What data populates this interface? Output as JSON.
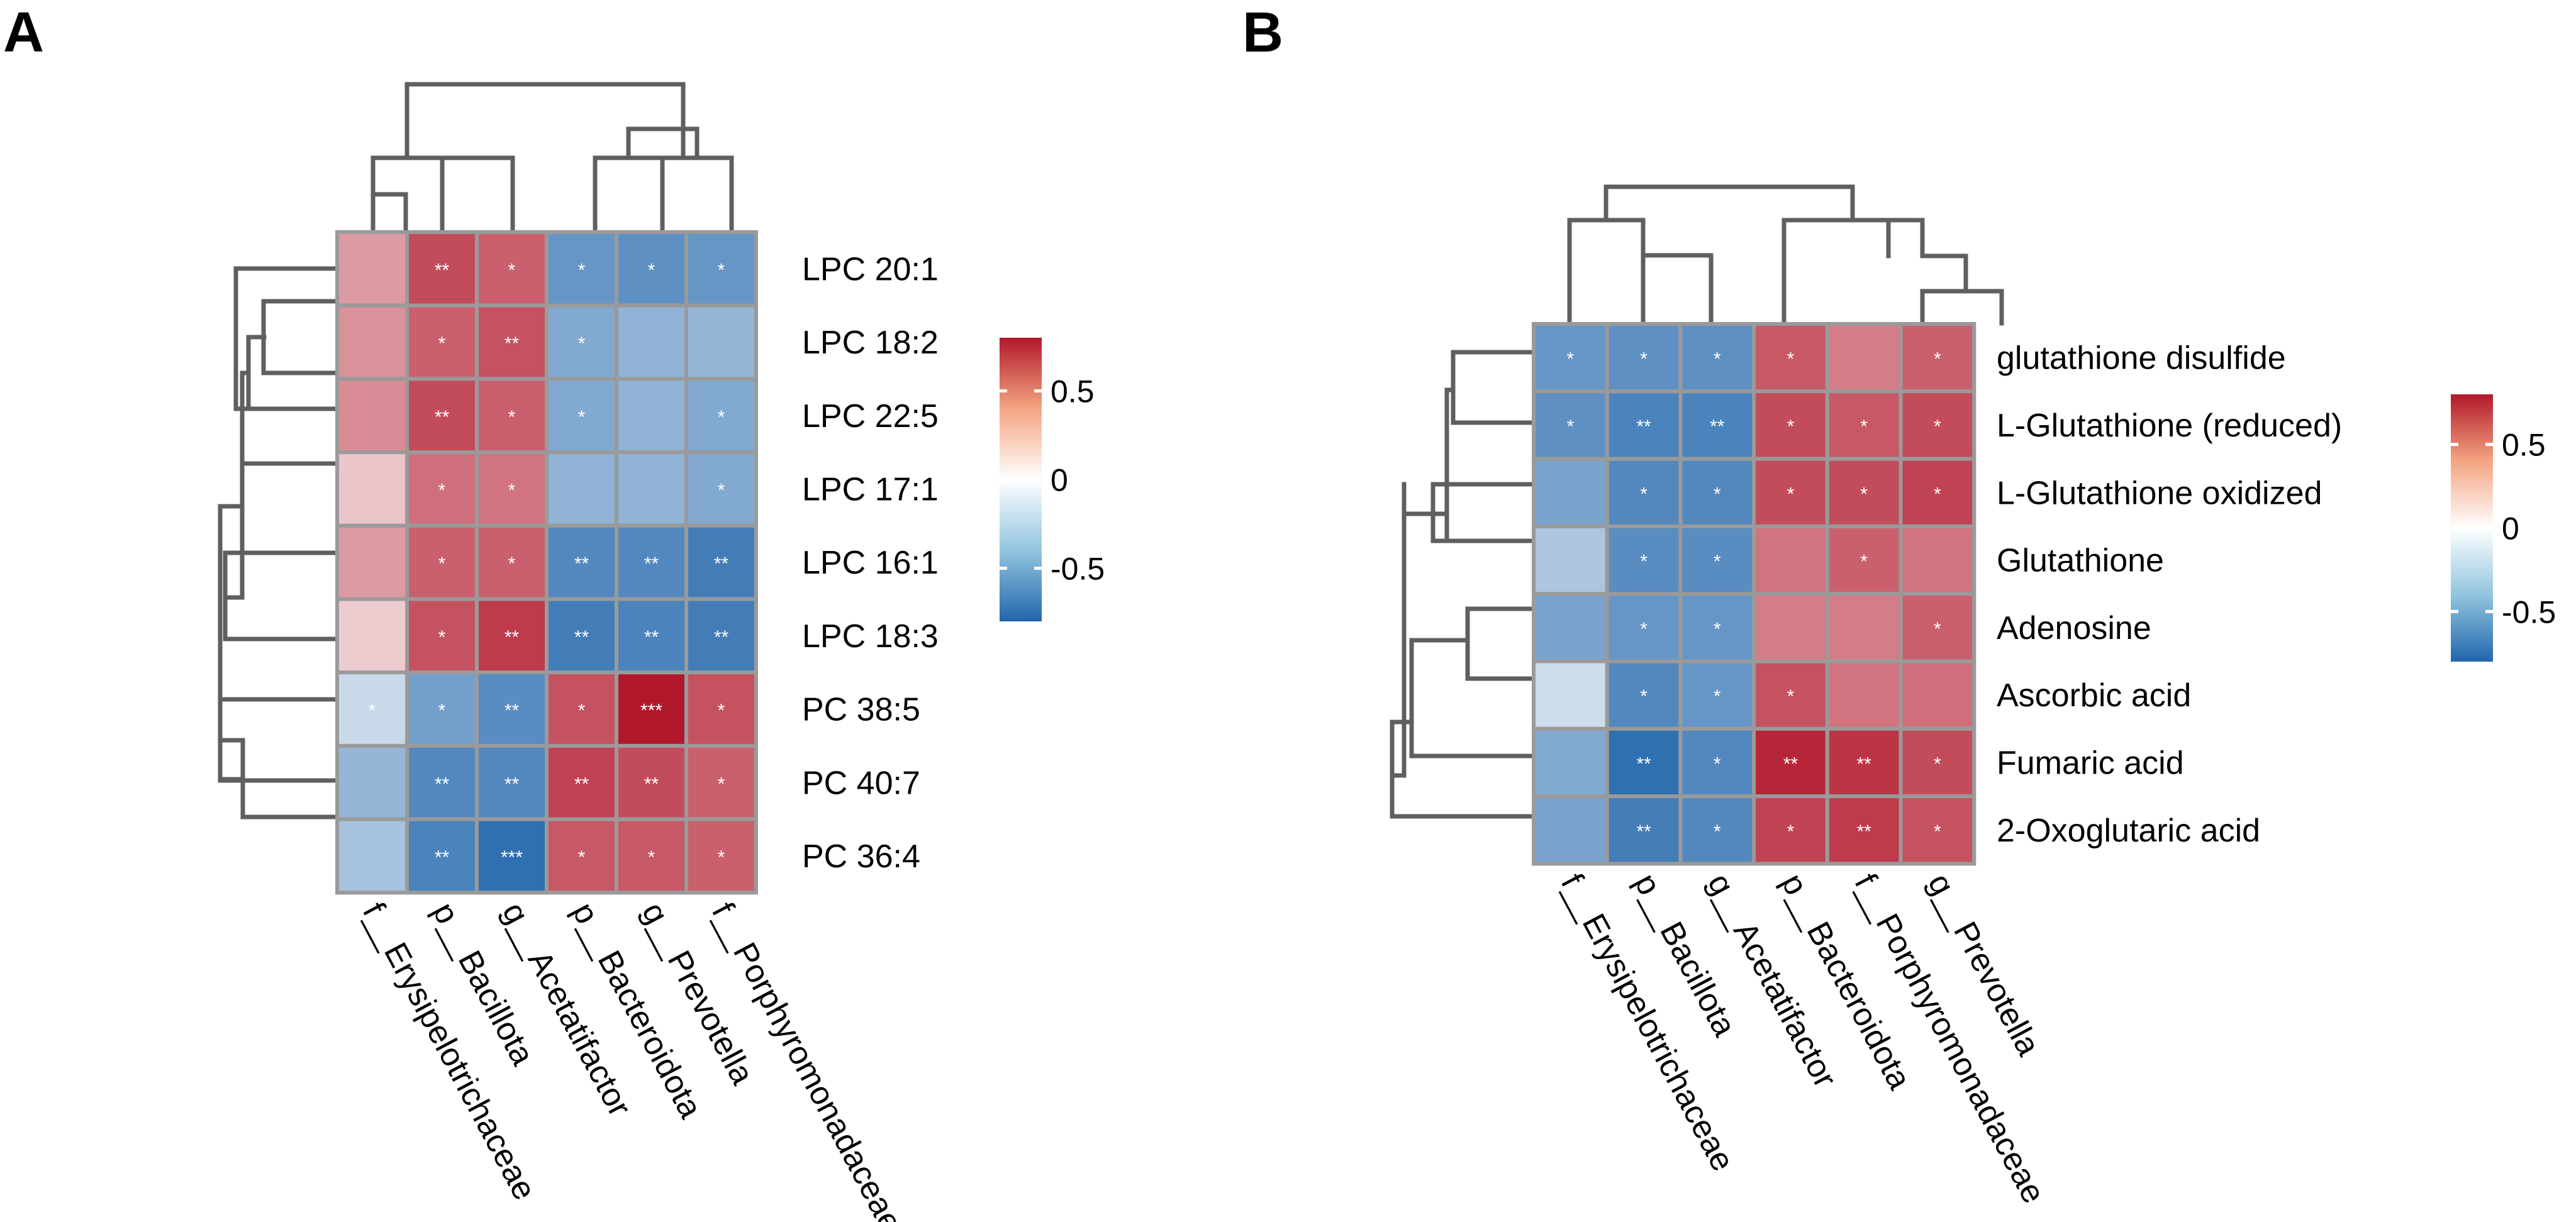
{
  "colors": {
    "negative": "#2166ac",
    "zero": "#ffffff",
    "positive": "#b2182b",
    "grid": "#9a9a9a",
    "dendrogram": "#5f5f5f"
  },
  "chart_data": [
    {
      "type": "heatmap",
      "panel": "A",
      "rows": [
        "LPC 20:1",
        "LPC 18:2",
        "LPC 22:5",
        "LPC 17:1",
        "LPC 16:1",
        "LPC 18:3",
        "PC 38:5",
        "PC 40:7",
        "PC 36:4"
      ],
      "columns": [
        "f__Erysipelotrichaceae",
        "p__Bacillota",
        "g__Acetatifactor",
        "p__Bacteroidota",
        "g__Prevotella",
        "f__Porphyromonadaceae"
      ],
      "values": [
        [
          0.35,
          0.62,
          0.55,
          -0.55,
          -0.58,
          -0.55
        ],
        [
          0.38,
          0.55,
          0.6,
          -0.45,
          -0.4,
          -0.38
        ],
        [
          0.4,
          0.62,
          0.55,
          -0.45,
          -0.4,
          -0.45
        ],
        [
          0.2,
          0.5,
          0.48,
          -0.4,
          -0.4,
          -0.45
        ],
        [
          0.35,
          0.55,
          0.55,
          -0.62,
          -0.62,
          -0.68
        ],
        [
          0.18,
          0.6,
          0.68,
          -0.68,
          -0.65,
          -0.68
        ],
        [
          -0.2,
          -0.5,
          -0.6,
          0.6,
          0.8,
          0.6
        ],
        [
          -0.38,
          -0.62,
          -0.62,
          0.65,
          0.62,
          0.55
        ],
        [
          -0.32,
          -0.65,
          -0.75,
          0.58,
          0.58,
          0.55
        ]
      ],
      "significance": [
        [
          "",
          "**",
          "*",
          "*",
          "*",
          "*"
        ],
        [
          "",
          "*",
          "**",
          "*",
          "",
          ""
        ],
        [
          "",
          "**",
          "*",
          "*",
          "",
          "*"
        ],
        [
          "",
          "*",
          "*",
          "",
          "",
          "*"
        ],
        [
          "",
          "*",
          "*",
          "**",
          "**",
          "**"
        ],
        [
          "",
          "*",
          "**",
          "**",
          "**",
          "**"
        ],
        [
          "*",
          "*",
          "**",
          "*",
          "***",
          "*"
        ],
        [
          "",
          "**",
          "**",
          "**",
          "**",
          "*"
        ],
        [
          "",
          "**",
          "***",
          "*",
          "*",
          "*"
        ]
      ],
      "colorbar": {
        "range": [
          -0.8,
          0.8
        ],
        "ticks": [
          -0.5,
          0,
          0.5
        ],
        "tick_labels": [
          "-0.5",
          "0",
          "0.5"
        ]
      }
    },
    {
      "type": "heatmap",
      "panel": "B",
      "rows": [
        "glutathione disulfide",
        "L-Glutathione (reduced)",
        "L-Glutathione oxidized",
        "Glutathione",
        "Adenosine",
        "Ascorbic acid",
        "Fumaric acid",
        "2-Oxoglutaric acid"
      ],
      "columns": [
        "f__Erysipelotrichaceae",
        "p__Bacillota",
        "g__Acetatifactor",
        "p__Bacteroidota",
        "f__Porphyromonadaceae",
        "g__Prevotella"
      ],
      "values": [
        [
          -0.55,
          -0.58,
          -0.58,
          0.58,
          0.45,
          0.55
        ],
        [
          -0.58,
          -0.65,
          -0.65,
          0.62,
          0.58,
          0.62
        ],
        [
          -0.48,
          -0.62,
          -0.62,
          0.62,
          0.62,
          0.65
        ],
        [
          -0.3,
          -0.6,
          -0.6,
          0.48,
          0.55,
          0.48
        ],
        [
          -0.48,
          -0.55,
          -0.55,
          0.45,
          0.45,
          0.55
        ],
        [
          -0.18,
          -0.62,
          -0.55,
          0.6,
          0.48,
          0.5
        ],
        [
          -0.45,
          -0.75,
          -0.62,
          0.75,
          0.7,
          0.62
        ],
        [
          -0.48,
          -0.68,
          -0.62,
          0.65,
          0.68,
          0.6
        ]
      ],
      "significance": [
        [
          "*",
          "*",
          "*",
          "*",
          "",
          "*"
        ],
        [
          "*",
          "**",
          "**",
          "*",
          "*",
          "*"
        ],
        [
          "",
          "*",
          "*",
          "*",
          "*",
          "*"
        ],
        [
          "",
          "*",
          "*",
          "",
          "*",
          ""
        ],
        [
          "",
          "*",
          "*",
          "",
          "",
          "*"
        ],
        [
          "",
          "*",
          "*",
          "*",
          "",
          ""
        ],
        [
          "",
          "**",
          "*",
          "**",
          "**",
          "*"
        ],
        [
          "",
          "**",
          "*",
          "*",
          "**",
          "*"
        ]
      ],
      "colorbar": {
        "range": [
          -0.8,
          0.8
        ],
        "ticks": [
          -0.5,
          0,
          0.5
        ],
        "tick_labels": [
          "-0.5",
          "0",
          "0.5"
        ]
      }
    }
  ]
}
